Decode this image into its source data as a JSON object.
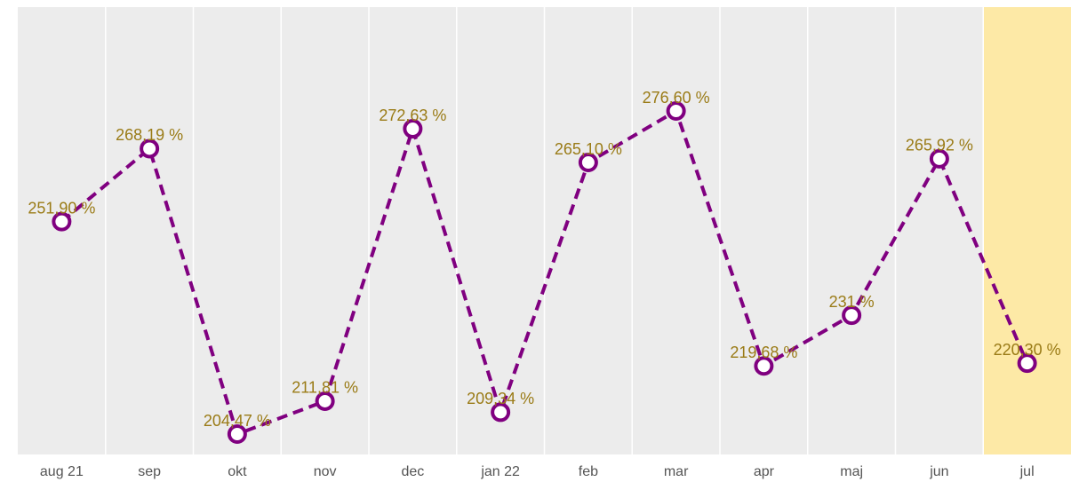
{
  "chart_data": {
    "type": "line",
    "categories": [
      "aug 21",
      "sep",
      "okt",
      "nov",
      "dec",
      "jan 22",
      "feb",
      "mar",
      "apr",
      "maj",
      "jun",
      "jul"
    ],
    "values": [
      251.9,
      268.19,
      204.47,
      211.81,
      272.63,
      209.34,
      265.1,
      276.6,
      219.68,
      231,
      265.92,
      220.3
    ],
    "value_labels": [
      "251,90 %",
      "268,19 %",
      "204,47 %",
      "211,81 %",
      "272,63 %",
      "209,34 %",
      "265,10 %",
      "276,60 %",
      "219,68 %",
      "231 %",
      "265,92 %",
      "220,30 %"
    ],
    "color": "#800080",
    "label_color": "#9a7b16",
    "highlight": "jul",
    "highlight_color": "#fde9a6",
    "dashed": true
  }
}
